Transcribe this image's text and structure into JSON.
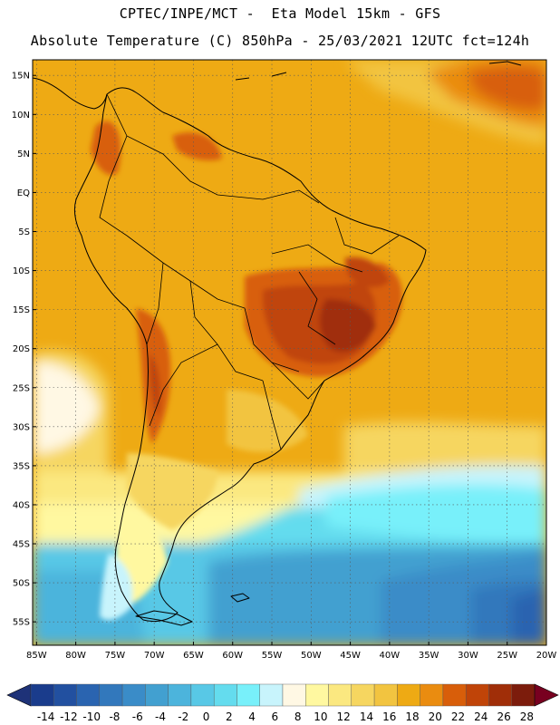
{
  "header": {
    "line1": "CPTEC/INPE/MCT -  Eta Model 15km - GFS",
    "line2": "Absolute Temperature (C) 850hPa - 25/03/2021 12UTC fct=124h"
  },
  "axes": {
    "lat_labels": [
      "15N",
      "10N",
      "5N",
      "EQ",
      "5S",
      "10S",
      "15S",
      "20S",
      "25S",
      "30S",
      "35S",
      "40S",
      "45S",
      "50S",
      "55S"
    ],
    "lat_values": [
      15,
      10,
      5,
      0,
      -5,
      -10,
      -15,
      -20,
      -25,
      -30,
      -35,
      -40,
      -45,
      -50,
      -55
    ],
    "lon_labels": [
      "85W",
      "80W",
      "75W",
      "70W",
      "65W",
      "60W",
      "55W",
      "50W",
      "45W",
      "40W",
      "35W",
      "30W",
      "25W",
      "20W"
    ],
    "lon_values": [
      -85,
      -80,
      -75,
      -70,
      -65,
      -60,
      -55,
      -50,
      -45,
      -40,
      -35,
      -30,
      -25,
      -20
    ],
    "lat_range": [
      -58,
      17
    ],
    "lon_range": [
      -85.5,
      -20
    ],
    "grid": true
  },
  "colorbar": {
    "labels": [
      "-14",
      "-12",
      "-10",
      "-8",
      "-6",
      "-4",
      "-2",
      "0",
      "2",
      "4",
      "6",
      "8",
      "10",
      "12",
      "14",
      "16",
      "18",
      "20",
      "22",
      "24",
      "26",
      "28"
    ],
    "colors": [
      "#1a3c8c",
      "#2250a0",
      "#2a64b0",
      "#3278bc",
      "#3a8cc8",
      "#42a0d0",
      "#4cb4dc",
      "#58c8e6",
      "#64dcee",
      "#78f0fa",
      "#c8f4fc",
      "#fff8e4",
      "#fff8a0",
      "#fbe880",
      "#f6d660",
      "#f2c440",
      "#eeaa14",
      "#ea8c10",
      "#d85e0a",
      "#c04408",
      "#a02e08",
      "#7c1c0c"
    ],
    "under_color": "#1e3278",
    "over_color": "#780020"
  }
}
